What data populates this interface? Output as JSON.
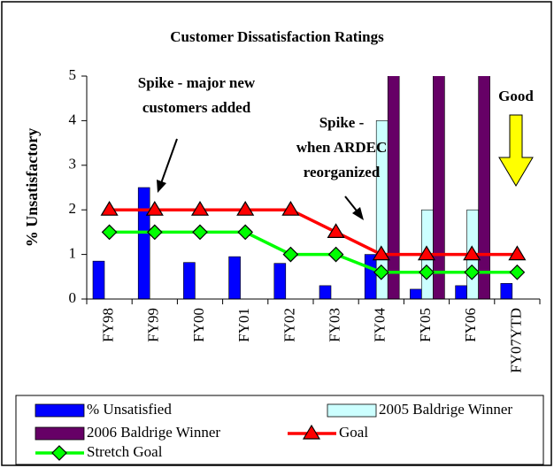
{
  "chart_data": {
    "type": "bar_line",
    "title": "Customer Dissatisfaction Ratings",
    "y_label": "% Unsatisfactory",
    "categories": [
      "FY98",
      "FY99",
      "FY00",
      "FY01",
      "FY02",
      "FY03",
      "FY04",
      "FY05",
      "FY06",
      "FY07YTD"
    ],
    "series": [
      {
        "name": "% Unsatisfied",
        "type": "bar",
        "color": "#0000ff",
        "values": [
          0.85,
          2.5,
          0.82,
          0.95,
          0.8,
          0.3,
          1.0,
          0.22,
          0.3,
          0.35
        ]
      },
      {
        "name": "2005 Baldrige Winner",
        "type": "bar",
        "color": "#ccffff",
        "values": [
          null,
          null,
          null,
          null,
          null,
          null,
          4,
          2,
          2,
          null
        ]
      },
      {
        "name": "2006 Baldrige Winner",
        "type": "bar",
        "color": "#660066",
        "values": [
          null,
          null,
          null,
          null,
          null,
          null,
          6,
          6,
          6,
          null
        ]
      },
      {
        "name": "Goal",
        "type": "line",
        "color": "#ff0000",
        "marker": "triangle",
        "values": [
          2,
          2,
          2,
          2,
          2,
          1.5,
          1,
          1,
          1,
          1
        ]
      },
      {
        "name": "Stretch Goal",
        "type": "line",
        "color": "#00ff00",
        "marker": "diamond",
        "values": [
          1.5,
          1.5,
          1.5,
          1.5,
          1,
          1,
          0.6,
          0.6,
          0.6,
          0.6
        ]
      }
    ],
    "ylim": [
      0,
      5
    ],
    "yticks": [
      0,
      1,
      2,
      3,
      4,
      5
    ],
    "grid": false,
    "legend": "bottom",
    "annotations": [
      {
        "lines": [
          "Spike - major new",
          "customers added"
        ]
      },
      {
        "lines": [
          "Spike -",
          "when ARDEC",
          "reorganized"
        ]
      },
      {
        "lines": [
          "Good"
        ]
      }
    ]
  }
}
